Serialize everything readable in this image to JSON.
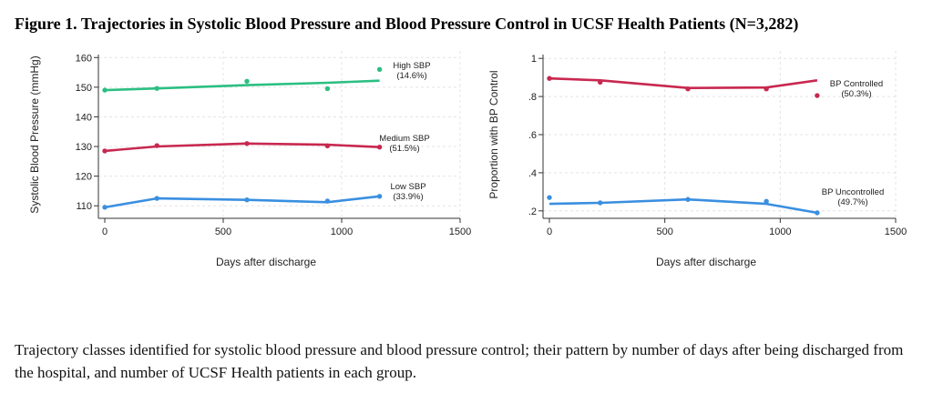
{
  "figure_title": "Figure 1. Trajectories in Systolic Blood Pressure and Blood Pressure Control in UCSF Health Patients (N=3,282)",
  "caption": "Trajectory classes identified for systolic blood pressure and blood pressure control; their pattern by number of days after being discharged from the hospital, and number of UCSF Health patients in each group.",
  "chart_data": [
    {
      "type": "line",
      "title": "",
      "xlabel": "Days after discharge",
      "ylabel": "Systolic Blood Pressure (mmHg)",
      "xlim": [
        0,
        1500
      ],
      "ylim": [
        107,
        161
      ],
      "xticks": [
        0,
        500,
        1000,
        1500
      ],
      "xtick_labels": [
        "0",
        "500",
        "1000",
        "1500"
      ],
      "yticks": [
        110,
        120,
        130,
        140,
        150,
        160
      ],
      "ytick_labels": [
        "110",
        "120",
        "130",
        "140",
        "150",
        "160"
      ],
      "grid": true,
      "series": [
        {
          "name": "High SBP",
          "pct": "(14.6%)",
          "color": "#2bbf82",
          "fit_x": [
            0,
            220,
            600,
            940,
            1160
          ],
          "fit_y": [
            149,
            149.6,
            150.7,
            151.5,
            152.2
          ],
          "points_x": [
            0,
            220,
            600,
            940,
            1160
          ],
          "points_y": [
            149,
            149.6,
            152,
            149.5,
            156
          ]
        },
        {
          "name": "Medium SBP",
          "pct": "(51.5%)",
          "color": "#c8284f",
          "fit_x": [
            0,
            220,
            600,
            940,
            1160
          ],
          "fit_y": [
            128.5,
            130,
            131,
            130.6,
            129.8
          ],
          "points_x": [
            0,
            220,
            600,
            940,
            1160
          ],
          "points_y": [
            128.5,
            130.3,
            131,
            130.2,
            129.8
          ]
        },
        {
          "name": "Low SBP",
          "pct": "(33.9%)",
          "color": "#3a8fe0",
          "fit_x": [
            0,
            220,
            600,
            940,
            1160
          ],
          "fit_y": [
            109.5,
            112.5,
            112,
            111.2,
            113.2
          ],
          "points_x": [
            0,
            220,
            600,
            940,
            1160
          ],
          "points_y": [
            109.5,
            112.5,
            112,
            111.6,
            113.2
          ]
        }
      ]
    },
    {
      "type": "line",
      "title": "",
      "xlabel": "Days after discharge",
      "ylabel": "Proportion with BP Control",
      "xlim": [
        0,
        1500
      ],
      "ylim": [
        0.18,
        1.02
      ],
      "xticks": [
        0,
        500,
        1000,
        1500
      ],
      "xtick_labels": [
        "0",
        "500",
        "1000",
        "1500"
      ],
      "yticks": [
        0.2,
        0.4,
        0.6,
        0.8,
        1.0
      ],
      "ytick_labels": [
        ".2",
        ".4",
        ".6",
        ".8",
        "1"
      ],
      "grid": true,
      "series": [
        {
          "name": "BP Controlled",
          "pct": "(50.3%)",
          "color": "#c8284f",
          "fit_x": [
            0,
            220,
            600,
            940,
            1160
          ],
          "fit_y": [
            0.895,
            0.885,
            0.845,
            0.847,
            0.885
          ],
          "points_x": [
            0,
            220,
            600,
            940,
            1160
          ],
          "points_y": [
            0.895,
            0.875,
            0.84,
            0.84,
            0.805
          ]
        },
        {
          "name": "BP Uncontrolled",
          "pct": "(49.7%)",
          "color": "#3a8fe0",
          "fit_x": [
            0,
            220,
            600,
            940,
            1160
          ],
          "fit_y": [
            0.237,
            0.242,
            0.26,
            0.237,
            0.19
          ],
          "points_x": [
            0,
            220,
            600,
            940,
            1160
          ],
          "points_y": [
            0.27,
            0.242,
            0.26,
            0.25,
            0.19
          ]
        }
      ]
    }
  ]
}
